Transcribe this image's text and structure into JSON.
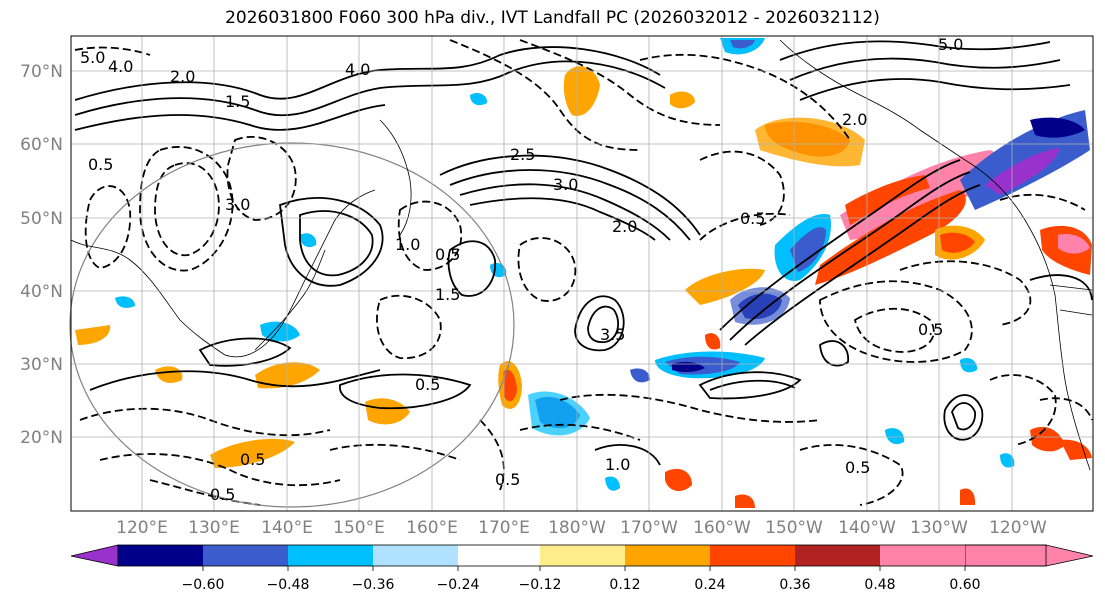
{
  "title": "2026031800 F060 300 hPa div., IVT Landfall PC (2026032012 - 2026032112)",
  "lat_labels": [
    "70°N",
    "60°N",
    "50°N",
    "40°N",
    "30°N",
    "20°N"
  ],
  "lon_labels": [
    "120°E",
    "130°E",
    "140°E",
    "150°E",
    "160°E",
    "170°E",
    "180°W",
    "170°W",
    "160°W",
    "150°W",
    "140°W",
    "130°W",
    "120°W"
  ],
  "colorbar": {
    "colors": [
      "#9932cc",
      "#00008b",
      "#3a5ccc",
      "#00bfff",
      "#b0e2ff",
      "#ffffff",
      "#ffec8b",
      "#ffa500",
      "#ff4500",
      "#b22222",
      "#ff82ab"
    ],
    "tick_labels": [
      "−0.60",
      "−0.48",
      "−0.36",
      "−0.24",
      "−0.12",
      "0.12",
      "0.24",
      "0.36",
      "0.48",
      "0.60"
    ]
  },
  "contour_labels": [
    "5.0",
    "4.0",
    "2.0",
    "1.5",
    "0.5",
    "3.0",
    "2.0",
    "1.0",
    "0.5",
    "1.5",
    "2.5",
    "3.5",
    "0.5",
    "0.5",
    "1.0",
    "0.5",
    "0.5",
    "2.0",
    "5.0",
    "4.0",
    "3.0",
    "0.5",
    "0.5",
    "0.5"
  ]
}
